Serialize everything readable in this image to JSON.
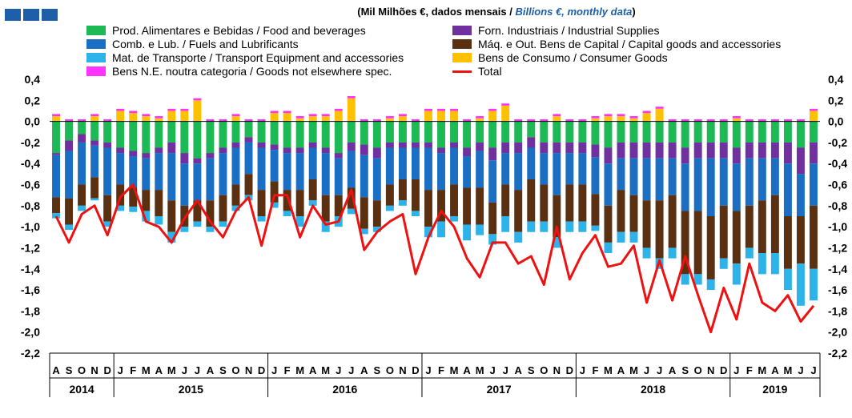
{
  "title": {
    "pt": "(Mil Milhões €, dados mensais / ",
    "en": "Billions  €, monthly data",
    "close": ")"
  },
  "colors": {
    "food": "#1db954",
    "supplies": "#7030a0",
    "fuels": "#1a6fc4",
    "capital": "#5a3010",
    "transport": "#2db3ea",
    "consumer": "#ffc000",
    "ne": "#ff33ff",
    "total": "#ee1111",
    "logo": "#1f5ea8"
  },
  "legend": [
    {
      "key": "food",
      "label": "Prod. Alimentares e Bebidas / Food and beverages"
    },
    {
      "key": "supplies",
      "label": "Forn. Industriais / Industrial Supplies"
    },
    {
      "key": "fuels",
      "label": "Comb. e Lub.  /  Fuels and Lubrificants"
    },
    {
      "key": "capital",
      "label": "Máq. e Out. Bens de Capital / Capital goods and accessories"
    },
    {
      "key": "transport",
      "label": "Mat. de Transporte / Transport Equipment and accessories"
    },
    {
      "key": "consumer",
      "label": "Bens de Consumo / Consumer Goods"
    },
    {
      "key": "ne",
      "label": "Bens N.E. noutra categoria / Goods not elsewhere spec."
    },
    {
      "key": "total",
      "label": "Total"
    }
  ],
  "chart_data": {
    "type": "bar",
    "stacked": true,
    "ylim": [
      -2.2,
      0.4
    ],
    "yticks": [
      "0,4",
      "0,2",
      "0,0",
      "-0,2",
      "-0,4",
      "-0,6",
      "-0,8",
      "-1,0",
      "-1,2",
      "-1,4",
      "-1,6",
      "-1,8",
      "-2,0",
      "-2,2"
    ],
    "grid": false,
    "legend_position": "top",
    "months": [
      "A",
      "S",
      "O",
      "N",
      "D",
      "J",
      "F",
      "M",
      "A",
      "M",
      "J",
      "J",
      "A",
      "S",
      "O",
      "N",
      "D",
      "J",
      "F",
      "M",
      "A",
      "M",
      "J",
      "J",
      "A",
      "S",
      "O",
      "N",
      "D",
      "J",
      "F",
      "M",
      "A",
      "M",
      "J",
      "J",
      "A",
      "S",
      "O",
      "N",
      "D",
      "J",
      "F",
      "M",
      "A",
      "M",
      "J",
      "J",
      "A",
      "S",
      "O",
      "N",
      "D",
      "J",
      "F",
      "M",
      "A",
      "M",
      "J",
      "J"
    ],
    "years": [
      {
        "label": "2014",
        "count": 5
      },
      {
        "label": "2015",
        "count": 12
      },
      {
        "label": "2016",
        "count": 12
      },
      {
        "label": "2017",
        "count": 12
      },
      {
        "label": "2018",
        "count": 12
      },
      {
        "label": "2019",
        "count": 7
      }
    ],
    "series": [
      {
        "key": "food",
        "name": "Prod. Alimentares e Bebidas / Food and beverages",
        "values": [
          -0.3,
          -0.18,
          -0.12,
          -0.18,
          -0.2,
          -0.25,
          -0.28,
          -0.3,
          -0.25,
          -0.2,
          -0.3,
          -0.35,
          -0.3,
          -0.25,
          -0.2,
          -0.15,
          -0.2,
          -0.22,
          -0.25,
          -0.25,
          -0.2,
          -0.25,
          -0.3,
          -0.2,
          -0.22,
          -0.25,
          -0.2,
          -0.2,
          -0.2,
          -0.2,
          -0.25,
          -0.2,
          -0.25,
          -0.2,
          -0.25,
          -0.2,
          -0.2,
          -0.15,
          -0.2,
          -0.2,
          -0.2,
          -0.2,
          -0.22,
          -0.25,
          -0.2,
          -0.2,
          -0.2,
          -0.2,
          -0.2,
          -0.25,
          -0.2,
          -0.2,
          -0.2,
          -0.25,
          -0.2,
          -0.2,
          -0.2,
          -0.2,
          -0.25,
          -0.2
        ]
      },
      {
        "key": "supplies",
        "name": "Forn. Industriais / Industrial Supplies",
        "values": [
          -0.02,
          -0.1,
          -0.08,
          -0.05,
          -0.05,
          -0.05,
          -0.05,
          -0.05,
          -0.05,
          -0.1,
          -0.1,
          -0.05,
          -0.05,
          -0.05,
          -0.05,
          -0.05,
          -0.05,
          -0.05,
          -0.05,
          -0.05,
          -0.05,
          -0.05,
          -0.05,
          -0.08,
          -0.1,
          -0.1,
          -0.05,
          -0.05,
          -0.05,
          -0.05,
          -0.05,
          -0.05,
          -0.08,
          -0.08,
          -0.12,
          -0.1,
          -0.1,
          -0.1,
          -0.1,
          -0.1,
          -0.1,
          -0.1,
          -0.12,
          -0.15,
          -0.15,
          -0.15,
          -0.15,
          -0.15,
          -0.15,
          -0.15,
          -0.15,
          -0.15,
          -0.15,
          -0.15,
          -0.15,
          -0.15,
          -0.15,
          -0.2,
          -0.25,
          -0.2
        ]
      },
      {
        "key": "fuels",
        "name": "Comb. e Lub.  /  Fuels and Lubrificants",
        "values": [
          -0.4,
          -0.45,
          -0.4,
          -0.3,
          -0.45,
          -0.3,
          -0.3,
          -0.3,
          -0.35,
          -0.45,
          -0.4,
          -0.35,
          -0.4,
          -0.4,
          -0.35,
          -0.3,
          -0.4,
          -0.3,
          -0.35,
          -0.35,
          -0.3,
          -0.4,
          -0.35,
          -0.35,
          -0.4,
          -0.4,
          -0.35,
          -0.3,
          -0.3,
          -0.4,
          -0.35,
          -0.35,
          -0.3,
          -0.35,
          -0.4,
          -0.3,
          -0.35,
          -0.3,
          -0.3,
          -0.4,
          -0.3,
          -0.3,
          -0.35,
          -0.4,
          -0.3,
          -0.35,
          -0.4,
          -0.4,
          -0.35,
          -0.45,
          -0.5,
          -0.55,
          -0.45,
          -0.45,
          -0.45,
          -0.4,
          -0.35,
          -0.5,
          -0.4,
          -0.4
        ]
      },
      {
        "key": "capital",
        "name": "Máq. e Out. Bens de Capital / Capital goods and accessories",
        "values": [
          -0.15,
          -0.25,
          -0.2,
          -0.2,
          -0.25,
          -0.2,
          -0.18,
          -0.2,
          -0.25,
          -0.3,
          -0.2,
          -0.2,
          -0.25,
          -0.25,
          -0.2,
          -0.2,
          -0.25,
          -0.2,
          -0.2,
          -0.25,
          -0.2,
          -0.25,
          -0.2,
          -0.2,
          -0.3,
          -0.25,
          -0.2,
          -0.2,
          -0.3,
          -0.35,
          -0.3,
          -0.3,
          -0.35,
          -0.35,
          -0.3,
          -0.3,
          -0.4,
          -0.4,
          -0.35,
          -0.4,
          -0.35,
          -0.35,
          -0.3,
          -0.35,
          -0.4,
          -0.35,
          -0.45,
          -0.55,
          -0.5,
          -0.6,
          -0.6,
          -0.6,
          -0.5,
          -0.5,
          -0.4,
          -0.5,
          -0.55,
          -0.5,
          -0.45,
          -0.6
        ]
      },
      {
        "key": "transport",
        "name": "Mat. de Transporte / Transport Equipment and accessories",
        "values": [
          -0.05,
          -0.05,
          -0.05,
          -0.02,
          -0.05,
          -0.05,
          -0.05,
          -0.1,
          -0.08,
          -0.1,
          -0.05,
          -0.05,
          -0.05,
          -0.05,
          -0.05,
          -0.05,
          -0.05,
          -0.05,
          -0.05,
          -0.1,
          -0.05,
          -0.1,
          -0.1,
          -0.05,
          -0.05,
          -0.05,
          -0.05,
          -0.05,
          -0.05,
          -0.1,
          -0.15,
          -0.05,
          -0.15,
          -0.1,
          -0.1,
          -0.15,
          -0.1,
          -0.1,
          -0.1,
          -0.1,
          -0.1,
          -0.1,
          -0.05,
          -0.1,
          -0.1,
          -0.1,
          -0.1,
          -0.1,
          -0.1,
          -0.1,
          -0.1,
          -0.1,
          -0.1,
          -0.2,
          -0.1,
          -0.2,
          -0.2,
          -0.2,
          -0.4,
          -0.3
        ]
      },
      {
        "key": "consumer",
        "name": "Bens de Consumo / Consumer Goods",
        "values": [
          0.05,
          0.0,
          0.0,
          0.05,
          0.0,
          0.1,
          0.08,
          0.05,
          0.03,
          0.1,
          0.1,
          0.2,
          0.0,
          0.0,
          0.05,
          0.0,
          0.0,
          0.08,
          0.08,
          0.03,
          0.05,
          0.05,
          0.1,
          0.22,
          0.0,
          0.0,
          0.03,
          0.05,
          0.0,
          0.1,
          0.1,
          0.1,
          0.0,
          0.03,
          0.1,
          0.15,
          0.0,
          0.0,
          0.0,
          0.05,
          0.0,
          0.0,
          0.03,
          0.05,
          0.05,
          0.03,
          0.08,
          0.12,
          0.0,
          0.0,
          0.0,
          0.0,
          0.0,
          0.03,
          0.0,
          0.0,
          0.0,
          0.0,
          0.0,
          0.1
        ]
      },
      {
        "key": "ne",
        "name": "Bens N.E. noutra categoria / Goods not elsewhere spec.",
        "values": [
          0.02,
          0.02,
          0.02,
          0.02,
          0.02,
          0.02,
          0.02,
          0.02,
          0.02,
          0.02,
          0.02,
          0.02,
          0.02,
          0.02,
          0.02,
          0.02,
          0.02,
          0.02,
          0.02,
          0.02,
          0.02,
          0.02,
          0.02,
          0.02,
          0.02,
          0.02,
          0.02,
          0.02,
          0.02,
          0.02,
          0.02,
          0.02,
          0.02,
          0.02,
          0.02,
          0.02,
          0.02,
          0.02,
          0.02,
          0.02,
          0.02,
          0.02,
          0.02,
          0.02,
          0.02,
          0.02,
          0.02,
          0.02,
          0.02,
          0.02,
          0.02,
          0.02,
          0.02,
          0.02,
          0.02,
          0.02,
          0.02,
          0.02,
          0.02,
          0.02
        ]
      },
      {
        "key": "total",
        "name": "Total",
        "type": "line",
        "values": [
          -0.9,
          -1.15,
          -0.88,
          -0.8,
          -1.08,
          -0.72,
          -0.6,
          -0.95,
          -1.0,
          -1.15,
          -0.92,
          -0.75,
          -0.95,
          -1.1,
          -0.85,
          -0.72,
          -1.18,
          -0.7,
          -0.7,
          -1.1,
          -0.8,
          -0.98,
          -0.95,
          -0.65,
          -1.22,
          -1.05,
          -0.95,
          -0.88,
          -1.45,
          -1.1,
          -0.85,
          -1.0,
          -1.3,
          -1.48,
          -1.15,
          -1.15,
          -1.35,
          -1.28,
          -1.55,
          -1.0,
          -1.5,
          -1.25,
          -1.08,
          -1.38,
          -1.35,
          -1.18,
          -1.72,
          -1.32,
          -1.7,
          -1.28,
          -1.65,
          -2.0,
          -1.58,
          -1.88,
          -1.35,
          -1.72,
          -1.8,
          -1.65,
          -1.9,
          -1.75
        ]
      }
    ]
  }
}
